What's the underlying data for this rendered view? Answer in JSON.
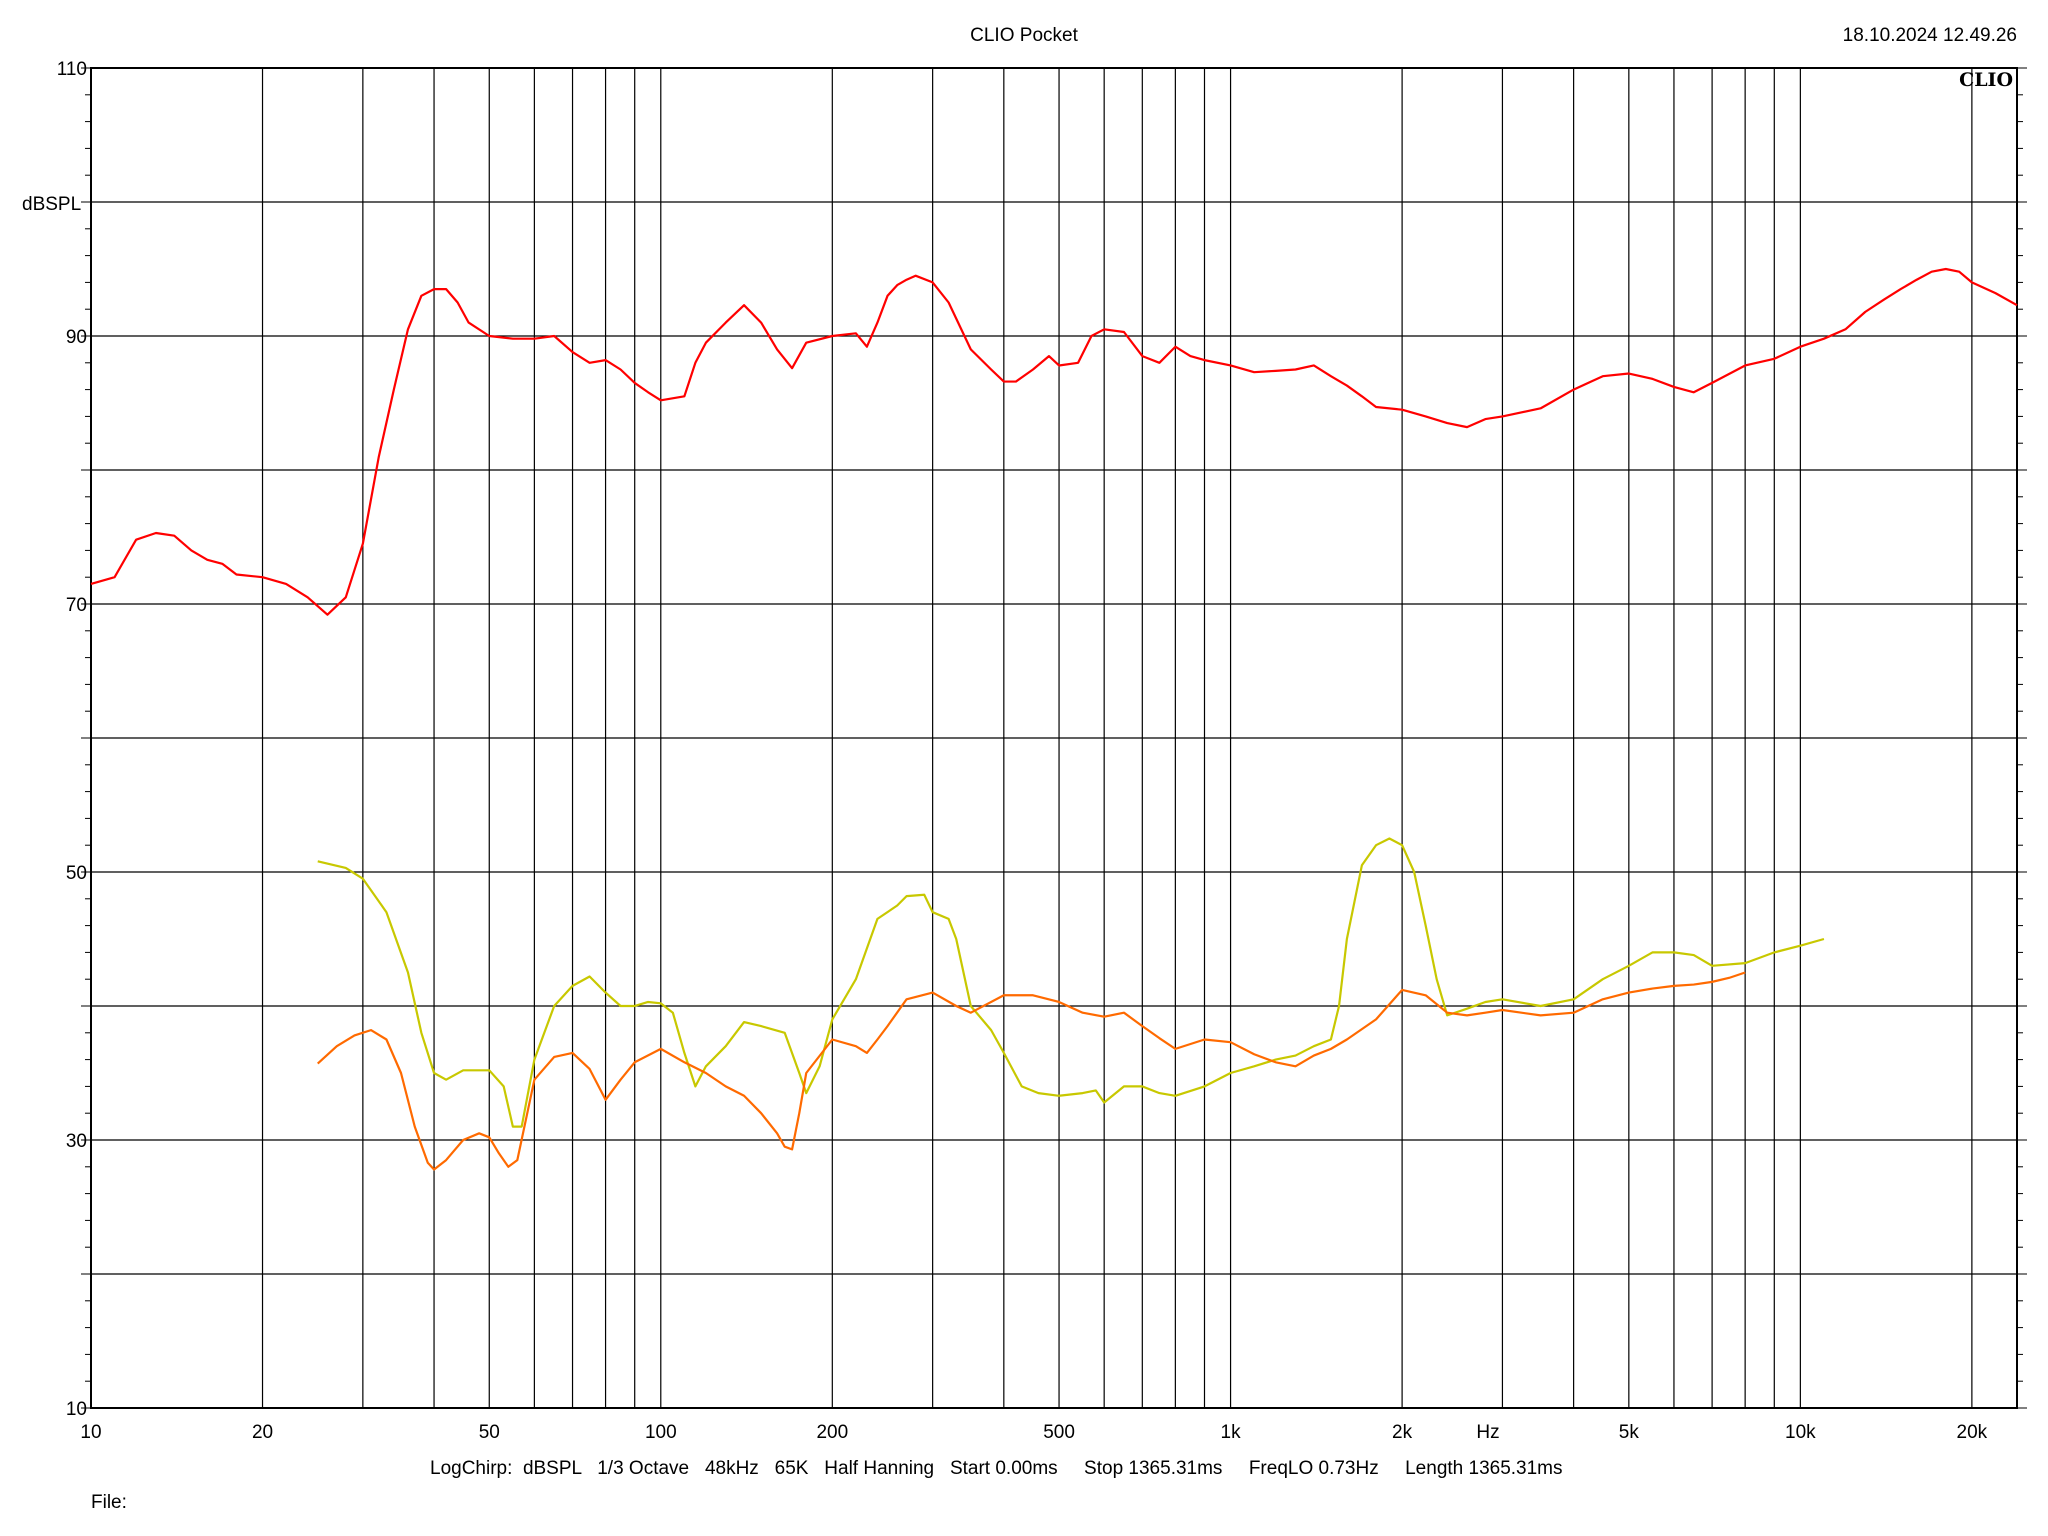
{
  "header": {
    "title": "CLIO Pocket",
    "timestamp": "18.10.2024 12.49.26",
    "logo_text": "CLIO"
  },
  "footer": {
    "settings": "LogChirp:  dBSPL   1/3 Octave   48kHz   65K   Half Hanning   Start 0.00ms     Stop 1365.31ms     FreqLO 0.73Hz     Length 1365.31ms",
    "file_label": "File:"
  },
  "colors": {
    "background": "#ffffff",
    "grid": "#000000",
    "series_red": "#ff0000",
    "series_yellow": "#c8c800",
    "series_orange": "#ff6a00"
  },
  "chart_data": {
    "type": "line",
    "title": "CLIO Pocket",
    "xlabel": "Hz",
    "ylabel": "dBSPL",
    "x_scale": "log",
    "xlim": [
      10,
      24000
    ],
    "ylim": [
      10,
      110
    ],
    "grid": true,
    "x_tick_labels": [
      {
        "value": 10,
        "label": "10"
      },
      {
        "value": 20,
        "label": "20"
      },
      {
        "value": 50,
        "label": "50"
      },
      {
        "value": 100,
        "label": "100"
      },
      {
        "value": 200,
        "label": "200"
      },
      {
        "value": 500,
        "label": "500"
      },
      {
        "value": 1000,
        "label": "1k"
      },
      {
        "value": 2000,
        "label": "2k"
      },
      {
        "value": 5000,
        "label": "5k"
      },
      {
        "value": 10000,
        "label": "10k"
      },
      {
        "value": 20000,
        "label": "20k"
      }
    ],
    "y_tick_labels": [
      {
        "value": 10,
        "label": "10"
      },
      {
        "value": 30,
        "label": "30"
      },
      {
        "value": 50,
        "label": "50"
      },
      {
        "value": 70,
        "label": "70"
      },
      {
        "value": 90,
        "label": "90"
      },
      {
        "value": 110,
        "label": "110"
      }
    ],
    "series": [
      {
        "color": "#ff0000",
        "points": [
          [
            10,
            71.5
          ],
          [
            11,
            72
          ],
          [
            12,
            74.8
          ],
          [
            13,
            75.3
          ],
          [
            14,
            75.1
          ],
          [
            15,
            74
          ],
          [
            16,
            73.3
          ],
          [
            17,
            73
          ],
          [
            18,
            72.2
          ],
          [
            20,
            72
          ],
          [
            22,
            71.5
          ],
          [
            24,
            70.5
          ],
          [
            26,
            69.2
          ],
          [
            28,
            70.5
          ],
          [
            30,
            74.5
          ],
          [
            32,
            81
          ],
          [
            34,
            86
          ],
          [
            36,
            90.5
          ],
          [
            38,
            93
          ],
          [
            40,
            93.5
          ],
          [
            42,
            93.5
          ],
          [
            44,
            92.5
          ],
          [
            46,
            91
          ],
          [
            50,
            90
          ],
          [
            55,
            89.8
          ],
          [
            60,
            89.8
          ],
          [
            65,
            90
          ],
          [
            70,
            88.8
          ],
          [
            75,
            88
          ],
          [
            80,
            88.2
          ],
          [
            85,
            87.5
          ],
          [
            90,
            86.5
          ],
          [
            95,
            85.8
          ],
          [
            100,
            85.2
          ],
          [
            110,
            85.5
          ],
          [
            115,
            88
          ],
          [
            120,
            89.5
          ],
          [
            130,
            91
          ],
          [
            140,
            92.3
          ],
          [
            150,
            91
          ],
          [
            160,
            89
          ],
          [
            170,
            87.6
          ],
          [
            180,
            89.5
          ],
          [
            200,
            90
          ],
          [
            220,
            90.2
          ],
          [
            230,
            89.2
          ],
          [
            240,
            91
          ],
          [
            250,
            93
          ],
          [
            260,
            93.8
          ],
          [
            270,
            94.2
          ],
          [
            280,
            94.5
          ],
          [
            300,
            94
          ],
          [
            320,
            92.5
          ],
          [
            350,
            89
          ],
          [
            380,
            87.5
          ],
          [
            400,
            86.6
          ],
          [
            420,
            86.6
          ],
          [
            450,
            87.5
          ],
          [
            480,
            88.5
          ],
          [
            500,
            87.8
          ],
          [
            540,
            88
          ],
          [
            570,
            90
          ],
          [
            600,
            90.5
          ],
          [
            650,
            90.3
          ],
          [
            700,
            88.5
          ],
          [
            750,
            88
          ],
          [
            800,
            89.2
          ],
          [
            850,
            88.5
          ],
          [
            900,
            88.2
          ],
          [
            1000,
            87.8
          ],
          [
            1100,
            87.3
          ],
          [
            1200,
            87.4
          ],
          [
            1300,
            87.5
          ],
          [
            1400,
            87.8
          ],
          [
            1500,
            87
          ],
          [
            1600,
            86.3
          ],
          [
            1700,
            85.5
          ],
          [
            1800,
            84.7
          ],
          [
            2000,
            84.5
          ],
          [
            2200,
            84
          ],
          [
            2400,
            83.5
          ],
          [
            2600,
            83.2
          ],
          [
            2800,
            83.8
          ],
          [
            3000,
            84
          ],
          [
            3500,
            84.6
          ],
          [
            4000,
            86
          ],
          [
            4500,
            87
          ],
          [
            5000,
            87.2
          ],
          [
            5500,
            86.8
          ],
          [
            6000,
            86.2
          ],
          [
            6500,
            85.8
          ],
          [
            7000,
            86.5
          ],
          [
            8000,
            87.8
          ],
          [
            9000,
            88.3
          ],
          [
            10000,
            89.2
          ],
          [
            11000,
            89.8
          ],
          [
            12000,
            90.5
          ],
          [
            13000,
            91.8
          ],
          [
            14000,
            92.7
          ],
          [
            15000,
            93.5
          ],
          [
            16000,
            94.2
          ],
          [
            17000,
            94.8
          ],
          [
            18000,
            95
          ],
          [
            19000,
            94.8
          ],
          [
            20000,
            94
          ],
          [
            22000,
            93.2
          ],
          [
            24000,
            92.3
          ]
        ]
      },
      {
        "color": "#c8c800",
        "points": [
          [
            25,
            50.8
          ],
          [
            28,
            50.3
          ],
          [
            30,
            49.5
          ],
          [
            33,
            47
          ],
          [
            36,
            42.5
          ],
          [
            38,
            38
          ],
          [
            40,
            35
          ],
          [
            42,
            34.5
          ],
          [
            45,
            35.2
          ],
          [
            50,
            35.2
          ],
          [
            53,
            34
          ],
          [
            55,
            31
          ],
          [
            57,
            31
          ],
          [
            60,
            36
          ],
          [
            65,
            40
          ],
          [
            70,
            41.5
          ],
          [
            75,
            42.2
          ],
          [
            80,
            41
          ],
          [
            85,
            40
          ],
          [
            90,
            40
          ],
          [
            95,
            40.3
          ],
          [
            100,
            40.2
          ],
          [
            105,
            39.5
          ],
          [
            110,
            36.5
          ],
          [
            115,
            34
          ],
          [
            120,
            35.5
          ],
          [
            130,
            37
          ],
          [
            140,
            38.8
          ],
          [
            150,
            38.5
          ],
          [
            165,
            38
          ],
          [
            175,
            35
          ],
          [
            180,
            33.5
          ],
          [
            190,
            35.5
          ],
          [
            200,
            39
          ],
          [
            220,
            42
          ],
          [
            240,
            46.5
          ],
          [
            260,
            47.5
          ],
          [
            270,
            48.2
          ],
          [
            290,
            48.3
          ],
          [
            300,
            47
          ],
          [
            320,
            46.5
          ],
          [
            330,
            45
          ],
          [
            350,
            40
          ],
          [
            380,
            38.2
          ],
          [
            400,
            36.5
          ],
          [
            430,
            34
          ],
          [
            460,
            33.5
          ],
          [
            500,
            33.3
          ],
          [
            550,
            33.5
          ],
          [
            580,
            33.7
          ],
          [
            600,
            32.8
          ],
          [
            650,
            34
          ],
          [
            700,
            34
          ],
          [
            750,
            33.5
          ],
          [
            800,
            33.3
          ],
          [
            900,
            34
          ],
          [
            1000,
            35
          ],
          [
            1100,
            35.5
          ],
          [
            1200,
            36
          ],
          [
            1300,
            36.3
          ],
          [
            1400,
            37
          ],
          [
            1500,
            37.5
          ],
          [
            1550,
            40
          ],
          [
            1600,
            45
          ],
          [
            1700,
            50.5
          ],
          [
            1800,
            52
          ],
          [
            1900,
            52.5
          ],
          [
            2000,
            52
          ],
          [
            2100,
            50
          ],
          [
            2200,
            46
          ],
          [
            2300,
            42
          ],
          [
            2400,
            39.3
          ],
          [
            2600,
            39.8
          ],
          [
            2800,
            40.3
          ],
          [
            3000,
            40.5
          ],
          [
            3500,
            40
          ],
          [
            4000,
            40.5
          ],
          [
            4500,
            42
          ],
          [
            5000,
            43
          ],
          [
            5500,
            44
          ],
          [
            6000,
            44
          ],
          [
            6500,
            43.8
          ],
          [
            7000,
            43
          ],
          [
            8000,
            43.2
          ],
          [
            9000,
            44
          ],
          [
            10000,
            44.5
          ],
          [
            11000,
            45
          ]
        ]
      },
      {
        "color": "#ff6a00",
        "points": [
          [
            25,
            35.7
          ],
          [
            27,
            37
          ],
          [
            29,
            37.8
          ],
          [
            31,
            38.2
          ],
          [
            33,
            37.5
          ],
          [
            35,
            35
          ],
          [
            37,
            31
          ],
          [
            39,
            28.3
          ],
          [
            40,
            27.8
          ],
          [
            42,
            28.5
          ],
          [
            45,
            30
          ],
          [
            48,
            30.5
          ],
          [
            50,
            30.2
          ],
          [
            52,
            29
          ],
          [
            54,
            28
          ],
          [
            56,
            28.5
          ],
          [
            60,
            34.5
          ],
          [
            65,
            36.2
          ],
          [
            70,
            36.5
          ],
          [
            75,
            35.3
          ],
          [
            80,
            33
          ],
          [
            85,
            34.5
          ],
          [
            90,
            35.8
          ],
          [
            100,
            36.8
          ],
          [
            110,
            35.8
          ],
          [
            120,
            35
          ],
          [
            130,
            34
          ],
          [
            140,
            33.3
          ],
          [
            150,
            32
          ],
          [
            160,
            30.5
          ],
          [
            165,
            29.5
          ],
          [
            170,
            29.3
          ],
          [
            175,
            32
          ],
          [
            180,
            35
          ],
          [
            200,
            37.5
          ],
          [
            220,
            37
          ],
          [
            230,
            36.5
          ],
          [
            240,
            37.5
          ],
          [
            250,
            38.5
          ],
          [
            270,
            40.5
          ],
          [
            300,
            41
          ],
          [
            330,
            40
          ],
          [
            350,
            39.5
          ],
          [
            400,
            40.8
          ],
          [
            450,
            40.8
          ],
          [
            500,
            40.3
          ],
          [
            550,
            39.5
          ],
          [
            600,
            39.2
          ],
          [
            650,
            39.5
          ],
          [
            700,
            38.5
          ],
          [
            750,
            37.6
          ],
          [
            800,
            36.8
          ],
          [
            900,
            37.5
          ],
          [
            1000,
            37.3
          ],
          [
            1100,
            36.4
          ],
          [
            1200,
            35.8
          ],
          [
            1300,
            35.5
          ],
          [
            1400,
            36.3
          ],
          [
            1500,
            36.8
          ],
          [
            1600,
            37.5
          ],
          [
            1800,
            39
          ],
          [
            2000,
            41.2
          ],
          [
            2200,
            40.8
          ],
          [
            2400,
            39.5
          ],
          [
            2600,
            39.3
          ],
          [
            2800,
            39.5
          ],
          [
            3000,
            39.7
          ],
          [
            3500,
            39.3
          ],
          [
            4000,
            39.5
          ],
          [
            4500,
            40.5
          ],
          [
            5000,
            41
          ],
          [
            5500,
            41.3
          ],
          [
            6000,
            41.5
          ],
          [
            6500,
            41.6
          ],
          [
            7000,
            41.8
          ],
          [
            7500,
            42.1
          ],
          [
            8000,
            42.5
          ]
        ]
      }
    ]
  }
}
